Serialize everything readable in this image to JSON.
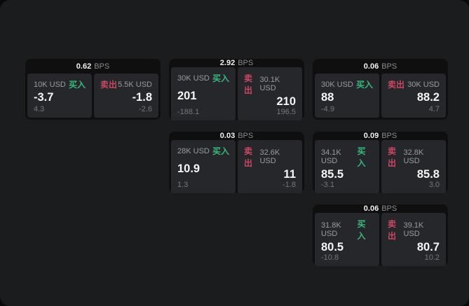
{
  "labels": {
    "buy": "买入",
    "sell": "卖出",
    "bps": "BPS"
  },
  "colors": {
    "buy_green": "#36b97d",
    "sell_red": "#cc4765",
    "surface": "#1b1c1d",
    "card": "#0f0f10",
    "panel": "#26272a"
  },
  "cards": [
    {
      "bps": "0.62",
      "buy": {
        "amount": "10K USD",
        "value": "-3.7",
        "sub": "4.3"
      },
      "sell": {
        "amount": "5.5K USD",
        "value": "-1.8",
        "sub": "-2.6"
      }
    },
    {
      "bps": "2.92",
      "buy": {
        "amount": "30K USD",
        "value": "201",
        "sub": "-188.1"
      },
      "sell": {
        "amount": "30.1K USD",
        "value": "210",
        "sub": "196.5"
      }
    },
    {
      "bps": "0.06",
      "buy": {
        "amount": "30K USD",
        "value": "88",
        "sub": "-4.9"
      },
      "sell": {
        "amount": "30K USD",
        "value": "88.2",
        "sub": "4.7"
      }
    },
    {
      "bps": "0.03",
      "buy": {
        "amount": "28K USD",
        "value": "10.9",
        "sub": "1.3"
      },
      "sell": {
        "amount": "32.6K USD",
        "value": "11",
        "sub": "-1.8"
      }
    },
    {
      "bps": "0.09",
      "buy": {
        "amount": "34.1K USD",
        "value": "85.5",
        "sub": "-3.1"
      },
      "sell": {
        "amount": "32.8K USD",
        "value": "85.8",
        "sub": "3.0"
      }
    },
    {
      "bps": "0.06",
      "buy": {
        "amount": "31.8K USD",
        "value": "80.5",
        "sub": "-10.8"
      },
      "sell": {
        "amount": "39.1K USD",
        "value": "80.7",
        "sub": "10.2"
      }
    }
  ]
}
